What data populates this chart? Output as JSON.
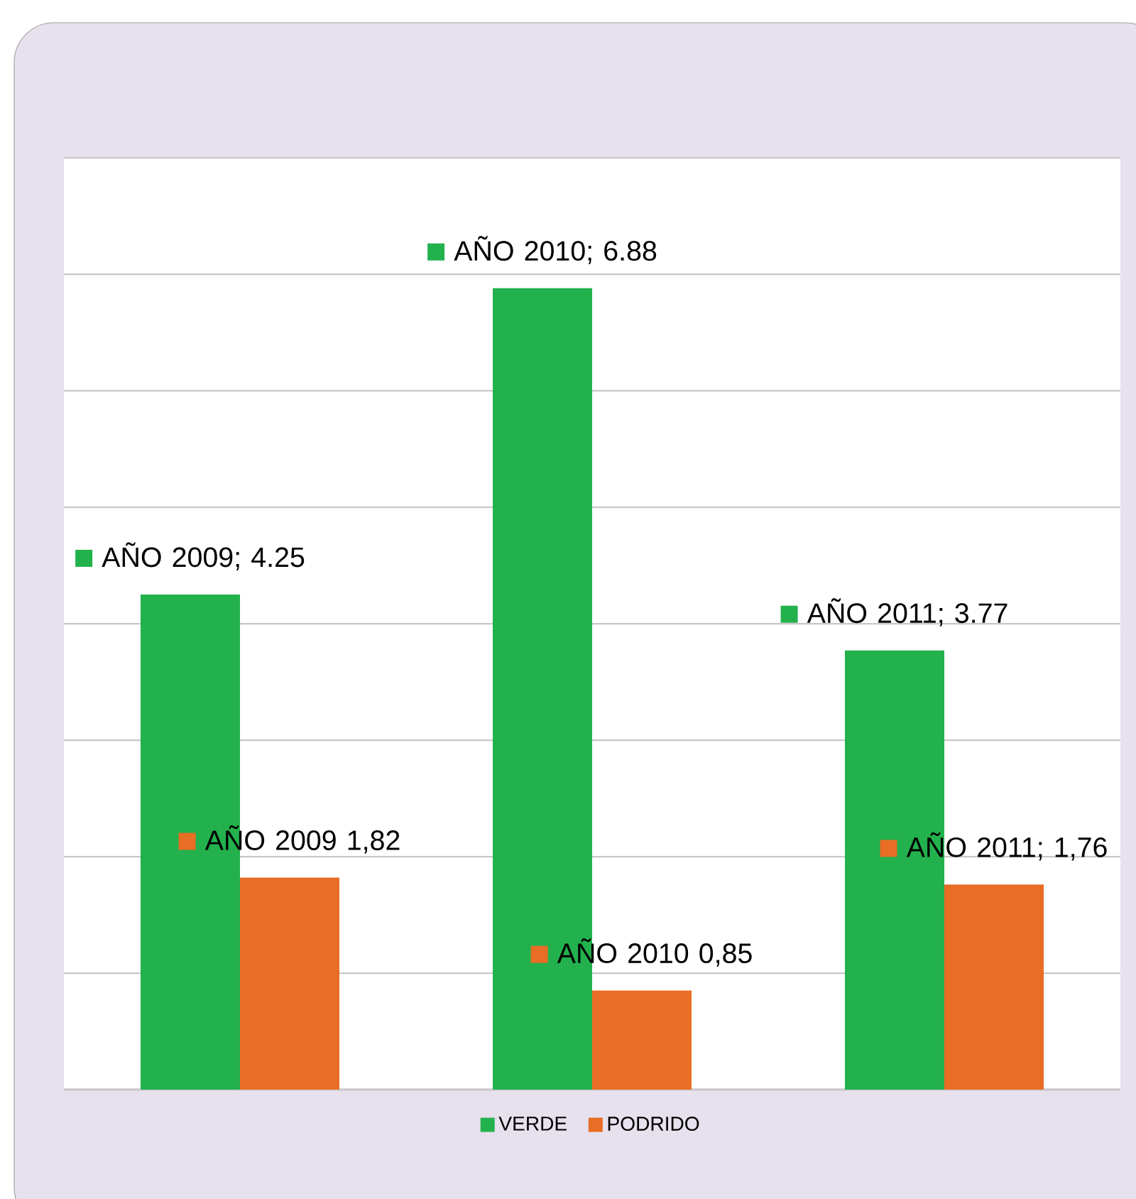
{
  "chart_data": {
    "type": "bar",
    "categories": [
      null,
      null,
      null
    ],
    "series": [
      {
        "name": "VERDE",
        "color": "#23b14d",
        "values": [
          4.25,
          6.88,
          3.77
        ],
        "value_labels": [
          "AÑO 2009; 4.25",
          "AÑO 2010; 6.88",
          "AÑO 2011; 3.77"
        ]
      },
      {
        "name": "PODRIDO",
        "color": "#e86d25",
        "values": [
          1.82,
          0.85,
          1.76
        ],
        "value_labels": [
          "AÑO 2009 1,82",
          "AÑO 2010 0,85",
          "AÑO 2011; 1,76"
        ]
      }
    ],
    "ylim": [
      0,
      8
    ],
    "yticks": [
      {
        "value": 0,
        "label": null
      },
      {
        "value": 1,
        "label": null
      },
      {
        "value": 2,
        "label": null
      },
      {
        "value": 3,
        "label": null
      },
      {
        "value": 4,
        "label": null
      },
      {
        "value": 5,
        "label": null
      },
      {
        "value": 6,
        "label": null
      },
      {
        "value": 7,
        "label": null
      },
      {
        "value": 8,
        "label": null
      }
    ],
    "grid": "y",
    "legend": "bottom"
  }
}
